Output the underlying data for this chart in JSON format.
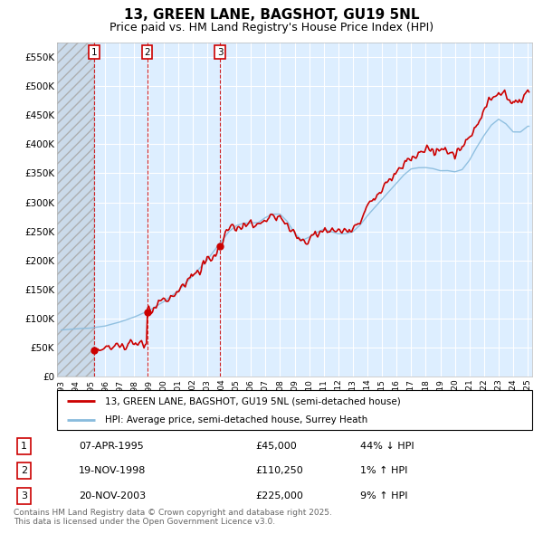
{
  "title": "13, GREEN LANE, BAGSHOT, GU19 5NL",
  "subtitle": "Price paid vs. HM Land Registry's House Price Index (HPI)",
  "ylim": [
    0,
    575000
  ],
  "yticks": [
    0,
    50000,
    100000,
    150000,
    200000,
    250000,
    300000,
    350000,
    400000,
    450000,
    500000,
    550000
  ],
  "ytick_labels": [
    "£0",
    "£50K",
    "£100K",
    "£150K",
    "£200K",
    "£250K",
    "£300K",
    "£350K",
    "£400K",
    "£450K",
    "£500K",
    "£550K"
  ],
  "xlim": [
    1992.7,
    2025.3
  ],
  "background_color": "#ffffff",
  "plot_bg_color": "#ddeeff",
  "grid_color": "#ffffff",
  "red_line_color": "#cc0000",
  "blue_line_color": "#88bbdd",
  "sale_marker_color": "#cc0000",
  "dashed_line_color": "#cc0000",
  "legend_label_red": "13, GREEN LANE, BAGSHOT, GU19 5NL (semi-detached house)",
  "legend_label_blue": "HPI: Average price, semi-detached house, Surrey Heath",
  "sales": [
    {
      "num": 1,
      "date": "07-APR-1995",
      "price": 45000,
      "pct": "44%",
      "dir": "↓",
      "year": 1995.27
    },
    {
      "num": 2,
      "date": "19-NOV-1998",
      "price": 110250,
      "pct": "1%",
      "dir": "↑",
      "year": 1998.88
    },
    {
      "num": 3,
      "date": "20-NOV-2003",
      "price": 225000,
      "pct": "9%",
      "dir": "↑",
      "year": 2003.88
    }
  ],
  "footer": "Contains HM Land Registry data © Crown copyright and database right 2025.\nThis data is licensed under the Open Government Licence v3.0.",
  "hpi_seed_year": 1995.27,
  "hpi_seed_value": 81818
}
